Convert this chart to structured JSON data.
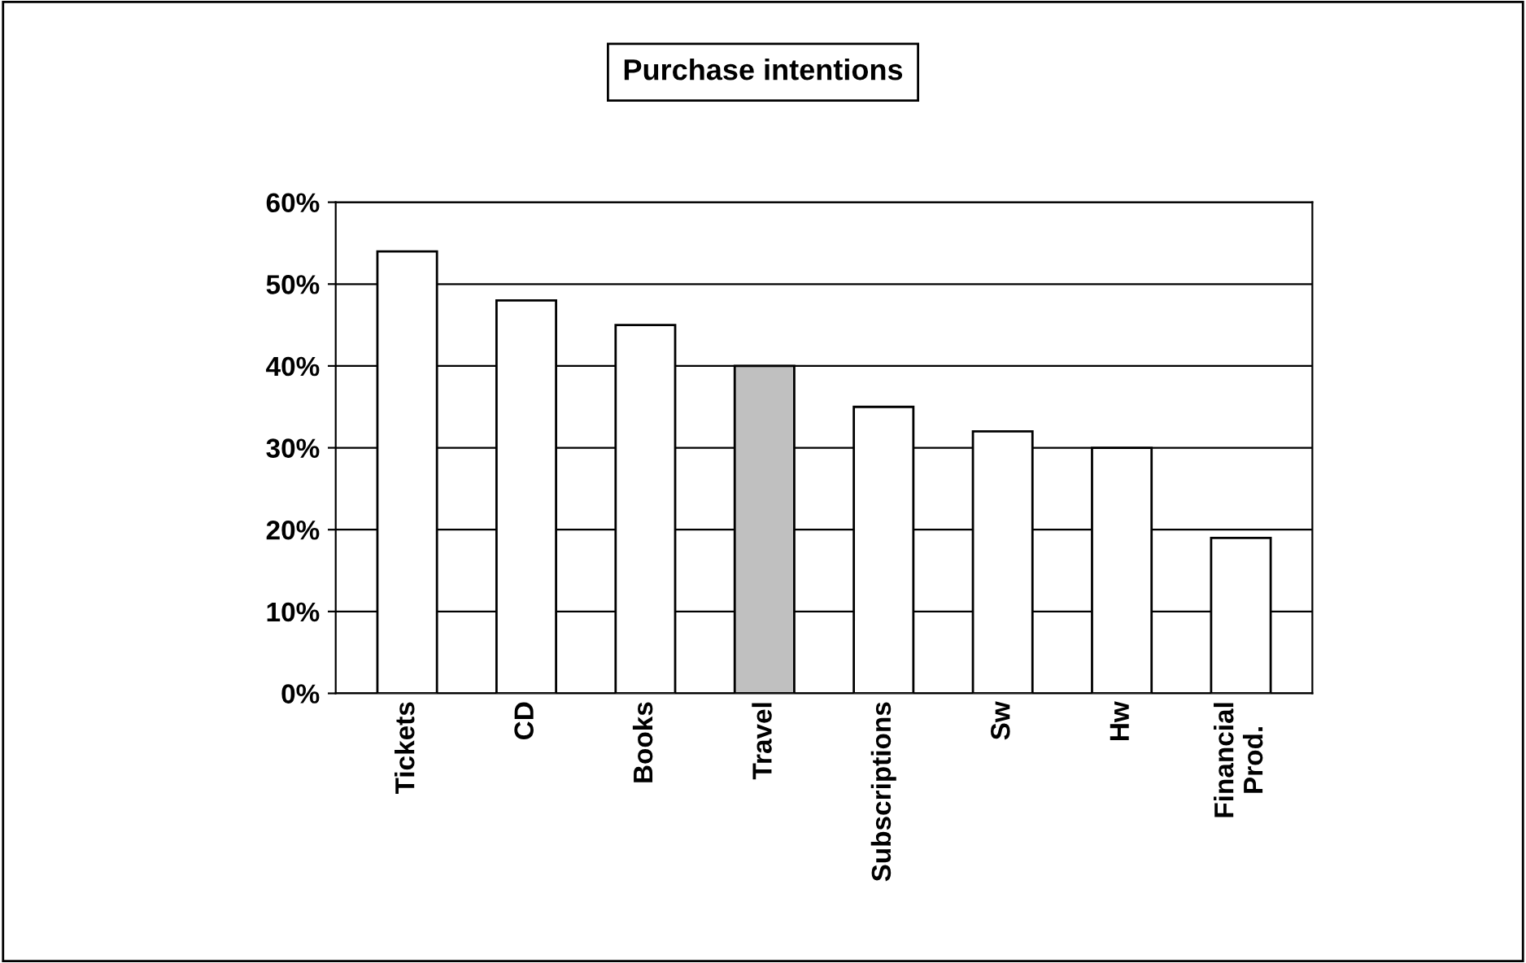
{
  "chart_data": {
    "type": "bar",
    "title": "Purchase intentions",
    "categories": [
      "Tickets",
      "CD",
      "Books",
      "Travel",
      "Subscriptions",
      "Sw",
      "Hw",
      "Financial\nProd."
    ],
    "values": [
      54,
      48,
      45,
      40,
      35,
      32,
      30,
      19
    ],
    "colors": [
      "#ffffff",
      "#ffffff",
      "#ffffff",
      "#c0c0c0",
      "#ffffff",
      "#ffffff",
      "#ffffff",
      "#ffffff"
    ],
    "ylim": [
      0,
      60
    ],
    "yticks": [
      {
        "value": 0,
        "label": "0%"
      },
      {
        "value": 10,
        "label": "10%"
      },
      {
        "value": 20,
        "label": "20%"
      },
      {
        "value": 30,
        "label": "30%"
      },
      {
        "value": 40,
        "label": "40%"
      },
      {
        "value": 50,
        "label": "50%"
      },
      {
        "value": 60,
        "label": "60%"
      }
    ],
    "grid": "y"
  }
}
